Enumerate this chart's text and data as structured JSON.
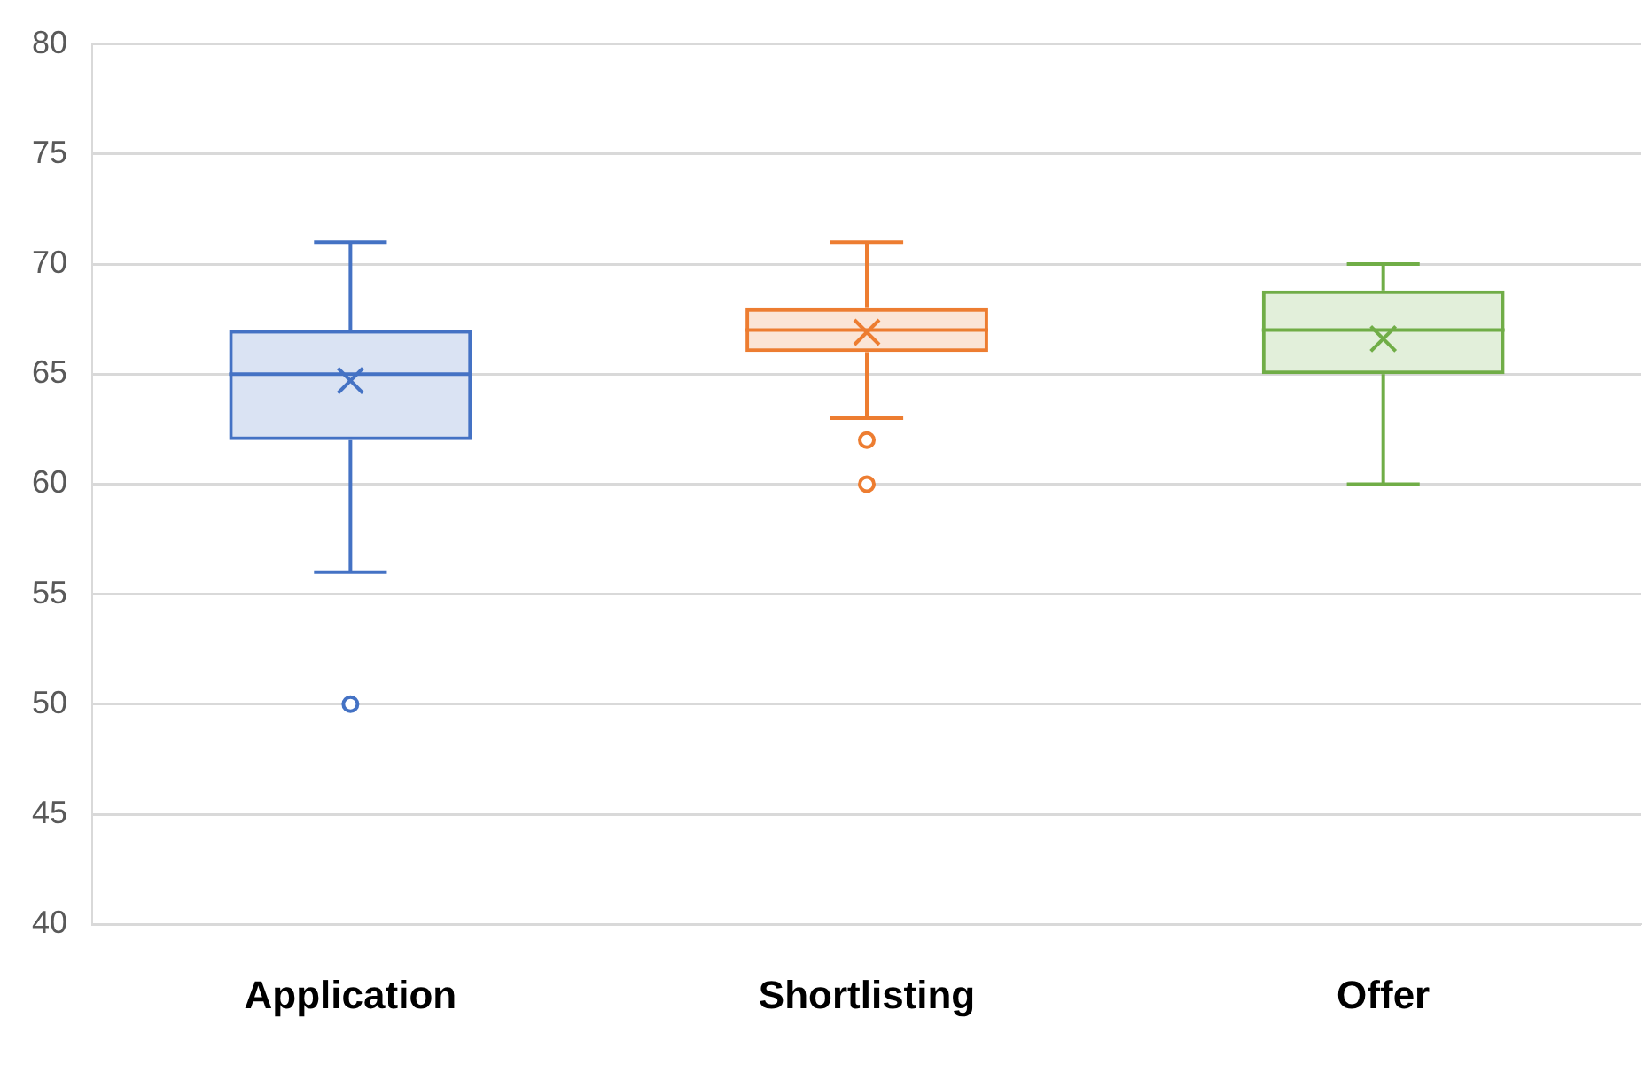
{
  "chart_data": {
    "type": "box",
    "categories": [
      "Application",
      "Shortlisting",
      "Offer"
    ],
    "colors": [
      "#4472c4",
      "#ed7d31",
      "#70ad47"
    ],
    "boxes": [
      {
        "low": 56,
        "q1": 62,
        "median": 65,
        "q3": 67,
        "high": 71,
        "mean": 64.7,
        "outliers": [
          50
        ]
      },
      {
        "low": 63,
        "q1": 66,
        "median": 67,
        "q3": 68,
        "high": 71,
        "mean": 66.9,
        "outliers": [
          62,
          60
        ]
      },
      {
        "low": 60,
        "q1": 65,
        "median": 67,
        "q3": 68.8,
        "high": 70,
        "mean": 66.6
      }
    ],
    "ylim": [
      40,
      80
    ],
    "yticks": [
      40,
      45,
      50,
      55,
      60,
      65,
      70,
      75,
      80
    ],
    "grid": "y",
    "legend": false
  }
}
